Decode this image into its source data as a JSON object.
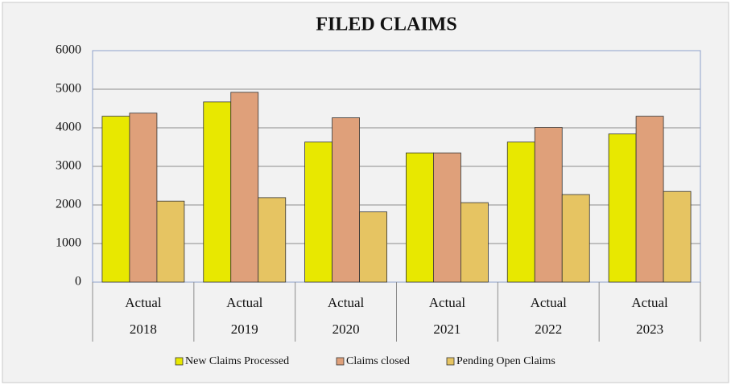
{
  "chart_data": {
    "type": "bar",
    "title": "FILED CLAIMS",
    "categories": [
      [
        "Actual",
        "2018"
      ],
      [
        "Actual",
        "2019"
      ],
      [
        "Actual",
        "2020"
      ],
      [
        "Actual",
        "2021"
      ],
      [
        "Actual",
        "2022"
      ],
      [
        "Actual",
        "2023"
      ]
    ],
    "series": [
      {
        "name": "New Claims Processed",
        "color": "#e8e800",
        "values": [
          4300,
          4670,
          3630,
          3350,
          3630,
          3840
        ]
      },
      {
        "name": "Claims closed",
        "color": "#dfa07a",
        "values": [
          4380,
          4920,
          4260,
          3350,
          4010,
          4300
        ]
      },
      {
        "name": "Pending Open Claims",
        "color": "#e6c462",
        "values": [
          2100,
          2190,
          1820,
          2060,
          2270,
          2350
        ]
      }
    ],
    "ylim": [
      0,
      6000
    ],
    "yticks": [
      0,
      1000,
      2000,
      3000,
      4000,
      5000,
      6000
    ],
    "grid": true,
    "legend": "bottom"
  }
}
